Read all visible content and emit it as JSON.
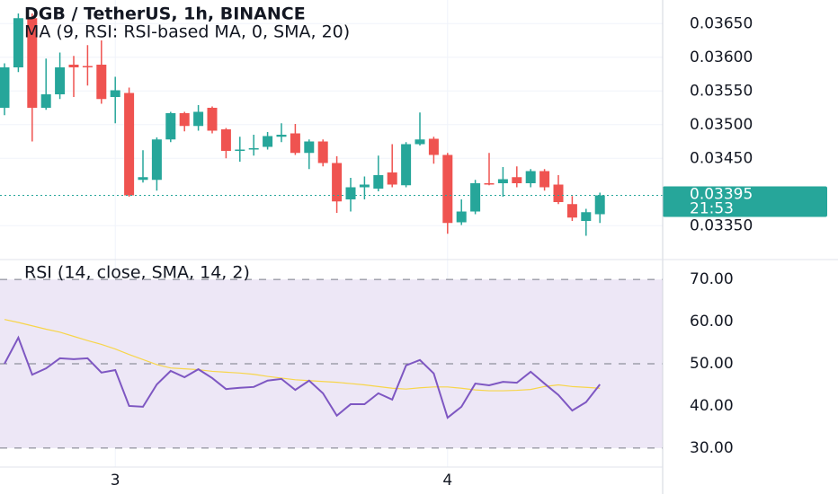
{
  "chart_data": [
    {
      "type": "candlestick",
      "title": "DGB / TetherUS, 1h, BINANCE",
      "subtitle": "MA (9, RSI: RSI-based MA, 0, SMA, 20)",
      "categories": [
        null,
        null,
        null,
        null,
        null,
        null,
        null,
        null,
        "3",
        null,
        null,
        null,
        null,
        null,
        null,
        null,
        null,
        null,
        null,
        null,
        null,
        null,
        null,
        null,
        null,
        null,
        null,
        null,
        null,
        null,
        null,
        null,
        "4",
        null,
        null,
        null,
        null,
        null,
        null,
        null,
        null,
        null,
        null,
        null
      ],
      "open": [
        0.03525,
        0.03585,
        0.03658,
        0.03525,
        0.03545,
        0.03589,
        0.03587,
        0.03589,
        0.03541,
        0.03547,
        0.03418,
        0.03418,
        0.03478,
        0.03517,
        0.03498,
        0.03525,
        0.03493,
        0.03461,
        0.03465,
        0.03467,
        0.03482,
        0.03487,
        0.03458,
        0.03475,
        0.03443,
        0.03389,
        0.03407,
        0.03405,
        0.03429,
        0.0341,
        0.03471,
        0.03479,
        0.03455,
        0.03355,
        0.03371,
        0.03413,
        0.03413,
        0.03422,
        0.03413,
        0.03431,
        0.03411,
        0.03382,
        0.03357,
        0.03367
      ],
      "high": [
        0.03591,
        0.03665,
        0.03665,
        0.03598,
        0.03607,
        0.03602,
        0.03618,
        0.03625,
        0.03571,
        0.03555,
        0.03462,
        0.03481,
        0.03519,
        0.03519,
        0.03529,
        0.03527,
        0.03495,
        0.03482,
        0.03485,
        0.03489,
        0.03502,
        0.03501,
        0.03478,
        0.03478,
        0.03453,
        0.03421,
        0.03423,
        0.03454,
        0.03471,
        0.03474,
        0.03518,
        0.03482,
        0.03458,
        0.03389,
        0.03418,
        0.03458,
        0.03437,
        0.03438,
        0.03434,
        0.03434,
        0.03425,
        0.03394,
        0.03375,
        0.03399
      ],
      "low": [
        0.03514,
        0.03578,
        0.03475,
        0.03522,
        0.03538,
        0.03541,
        0.03558,
        0.03531,
        0.03502,
        0.03393,
        0.03414,
        0.03402,
        0.03474,
        0.0349,
        0.03491,
        0.03487,
        0.0345,
        0.03445,
        0.03454,
        0.03463,
        0.03474,
        0.03455,
        0.03434,
        0.03438,
        0.03369,
        0.03371,
        0.03389,
        0.03401,
        0.03407,
        0.03407,
        0.03469,
        0.03442,
        0.03338,
        0.03351,
        0.03367,
        0.0341,
        0.03393,
        0.03407,
        0.03407,
        0.03402,
        0.03382,
        0.03357,
        0.03335,
        0.03354
      ],
      "close": [
        0.03585,
        0.03658,
        0.03525,
        0.03545,
        0.03585,
        0.03585,
        0.03586,
        0.03538,
        0.03551,
        0.03395,
        0.03422,
        0.03478,
        0.03517,
        0.03498,
        0.03519,
        0.03491,
        0.03461,
        0.03463,
        0.03465,
        0.03483,
        0.03485,
        0.03458,
        0.03475,
        0.03443,
        0.03386,
        0.03407,
        0.03411,
        0.03425,
        0.03411,
        0.03471,
        0.03478,
        0.03455,
        0.03354,
        0.03371,
        0.03413,
        0.03411,
        0.03419,
        0.03413,
        0.03431,
        0.03407,
        0.03385,
        0.03362,
        0.0337,
        0.03395
      ],
      "up_color": "#26a69a",
      "down_color": "#ef5350",
      "ylim": [
        0.03301,
        0.03685
      ],
      "yticks": [
        {
          "value": 0.0335,
          "label": "0.03350"
        },
        {
          "value": 0.0345,
          "label": "0.03450"
        },
        {
          "value": 0.035,
          "label": "0.03500"
        },
        {
          "value": 0.0355,
          "label": "0.03550"
        },
        {
          "value": 0.036,
          "label": "0.03600"
        },
        {
          "value": 0.0365,
          "label": "0.03650"
        }
      ],
      "grid": true,
      "last_price": 0.03395,
      "countdown": "21:53",
      "last_price_color": "#26a69a"
    },
    {
      "type": "line",
      "title": "RSI (14, close, SMA, 14, 2)",
      "series": [
        {
          "color": "#7e57c2",
          "values": [
            50.0,
            56.2,
            47.4,
            48.9,
            51.3,
            51.1,
            51.3,
            47.9,
            48.5,
            40.0,
            39.8,
            45.1,
            48.3,
            46.8,
            48.7,
            46.6,
            44.0,
            44.3,
            44.5,
            46.0,
            46.4,
            43.8,
            46.0,
            43.0,
            37.7,
            40.4,
            40.4,
            43.0,
            41.5,
            49.6,
            50.9,
            47.7,
            37.2,
            39.8,
            45.3,
            44.9,
            45.7,
            45.5,
            48.1,
            45.3,
            42.6,
            38.9,
            40.9,
            45.1
          ]
        },
        {
          "color": "#f7d54a",
          "values": [
            60.5,
            59.8,
            59.0,
            58.2,
            57.5,
            56.5,
            55.5,
            54.6,
            53.5,
            52.2,
            51.0,
            49.8,
            49.0,
            48.8,
            48.6,
            48.2,
            48.0,
            47.8,
            47.5,
            47.0,
            46.6,
            46.2,
            46.0,
            45.8,
            45.6,
            45.3,
            45.0,
            44.6,
            44.2,
            44.0,
            44.3,
            44.5,
            44.5,
            44.2,
            43.8,
            43.6,
            43.6,
            43.7,
            43.9,
            44.6,
            45.0,
            44.6,
            44.4,
            44.2
          ]
        }
      ],
      "ylim": [
        25.5,
        74.5
      ],
      "yticks": [
        {
          "value": 30,
          "label": "30.00"
        },
        {
          "value": 40,
          "label": "40.00"
        },
        {
          "value": 50,
          "label": "50.00"
        },
        {
          "value": 60,
          "label": "60.00"
        },
        {
          "value": 70,
          "label": "70.00"
        }
      ],
      "levels": [
        30,
        50,
        70
      ],
      "band_color": "#ede7f6"
    }
  ]
}
